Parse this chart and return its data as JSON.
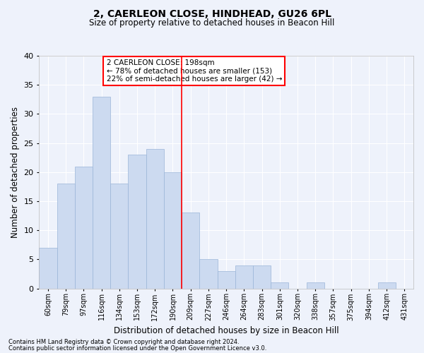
{
  "title": "2, CAERLEON CLOSE, HINDHEAD, GU26 6PL",
  "subtitle": "Size of property relative to detached houses in Beacon Hill",
  "xlabel": "Distribution of detached houses by size in Beacon Hill",
  "ylabel": "Number of detached properties",
  "bin_labels": [
    "60sqm",
    "79sqm",
    "97sqm",
    "116sqm",
    "134sqm",
    "153sqm",
    "172sqm",
    "190sqm",
    "209sqm",
    "227sqm",
    "246sqm",
    "264sqm",
    "283sqm",
    "301sqm",
    "320sqm",
    "338sqm",
    "357sqm",
    "375sqm",
    "394sqm",
    "412sqm",
    "431sqm"
  ],
  "values": [
    7,
    18,
    21,
    33,
    18,
    23,
    24,
    20,
    13,
    5,
    3,
    4,
    4,
    1,
    0,
    1,
    0,
    0,
    0,
    1,
    0
  ],
  "bar_color": "#ccdaf0",
  "bar_edge_color": "#9ab5d8",
  "reference_bin_index": 7.5,
  "ylim": [
    0,
    40
  ],
  "yticks": [
    0,
    5,
    10,
    15,
    20,
    25,
    30,
    35,
    40
  ],
  "annotation_title": "2 CAERLEON CLOSE: 198sqm",
  "annotation_line1": "← 78% of detached houses are smaller (153)",
  "annotation_line2": "22% of semi-detached houses are larger (42) →",
  "footnote1": "Contains HM Land Registry data © Crown copyright and database right 2024.",
  "footnote2": "Contains public sector information licensed under the Open Government Licence v3.0.",
  "bg_color": "#eef2fb",
  "grid_color": "#ffffff",
  "title_fontsize": 10,
  "subtitle_fontsize": 8.5,
  "ylabel_fontsize": 8.5,
  "xlabel_fontsize": 8.5,
  "tick_fontsize": 7,
  "annot_fontsize": 7.5,
  "footnote_fontsize": 6
}
